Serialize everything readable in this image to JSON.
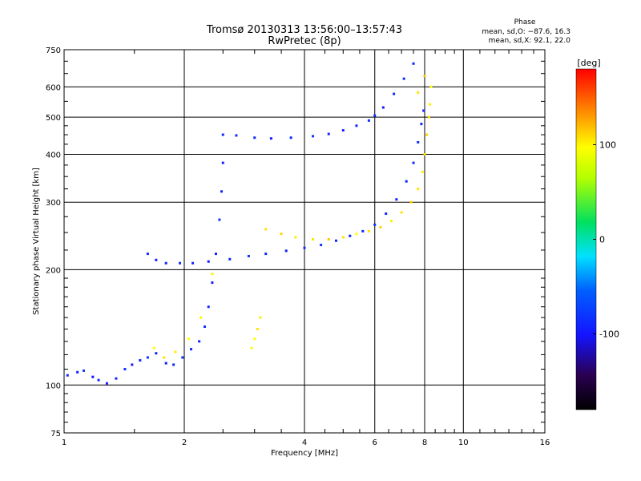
{
  "header": {
    "title": "Tromsø 20130313 13:56:00–13:57:43",
    "subtitle": "RwPretec (8p)",
    "phase_label": "Phase",
    "phase_o": "mean, sd,O: −87.6, 16.3",
    "phase_x": "mean, sd,X:  92.1, 22.0"
  },
  "chart_data": {
    "type": "scatter",
    "xlabel": "Frequency [MHz]",
    "ylabel": "Stationary phase Virtual Height [km]",
    "xscale": "log",
    "yscale": "log",
    "xlim": [
      1,
      16
    ],
    "ylim": [
      75,
      750
    ],
    "x_ticks": [
      1,
      2,
      4,
      6,
      8,
      10,
      16
    ],
    "x_tick_labels": [
      "1",
      "2",
      "4",
      "6",
      "8",
      "10",
      "16"
    ],
    "y_ticks": [
      75,
      100,
      200,
      300,
      400,
      500,
      600,
      750
    ],
    "y_tick_labels": [
      "75",
      "100",
      "200",
      "300",
      "400",
      "500",
      "600",
      "750"
    ],
    "grid": true,
    "colorbar": {
      "label": "[deg]",
      "range": [
        -180,
        180
      ],
      "ticks": [
        100,
        0,
        -100
      ],
      "tick_labels": [
        "100",
        "0",
        "-100"
      ]
    },
    "series": [
      {
        "values": [
          [
            1.02,
            106,
            -100
          ],
          [
            1.08,
            108,
            -105
          ],
          [
            1.12,
            109,
            -95
          ],
          [
            1.18,
            105,
            -110
          ],
          [
            1.22,
            103,
            -100
          ],
          [
            1.28,
            101,
            -105
          ],
          [
            1.35,
            104,
            -100
          ],
          [
            1.42,
            110,
            -95
          ],
          [
            1.48,
            113,
            -105
          ],
          [
            1.55,
            116,
            -100
          ],
          [
            1.62,
            118,
            -95
          ],
          [
            1.7,
            121,
            -100
          ],
          [
            1.8,
            114,
            -105
          ],
          [
            1.88,
            113,
            -100
          ],
          [
            1.98,
            118,
            -95
          ],
          [
            2.08,
            124,
            -100
          ],
          [
            2.18,
            130,
            -100
          ],
          [
            2.25,
            142,
            -95
          ],
          [
            2.3,
            160,
            -100
          ],
          [
            2.35,
            185,
            -105
          ],
          [
            2.4,
            220,
            -100
          ],
          [
            2.45,
            270,
            -95
          ],
          [
            2.48,
            320,
            -100
          ],
          [
            2.5,
            380,
            -105
          ],
          [
            1.62,
            220,
            -100
          ],
          [
            1.7,
            212,
            -105
          ],
          [
            1.8,
            208,
            -100
          ],
          [
            1.95,
            208,
            -95
          ],
          [
            2.1,
            208,
            -100
          ],
          [
            2.3,
            210,
            -105
          ],
          [
            2.6,
            213,
            -100
          ],
          [
            2.9,
            217,
            -95
          ],
          [
            3.2,
            220,
            -100
          ],
          [
            3.6,
            224,
            -105
          ],
          [
            4.0,
            228,
            -100
          ],
          [
            4.4,
            232,
            -95
          ],
          [
            4.8,
            238,
            -100
          ],
          [
            5.2,
            245,
            -105
          ],
          [
            5.6,
            252,
            -100
          ],
          [
            6.0,
            262,
            -95
          ],
          [
            6.4,
            280,
            -100
          ],
          [
            6.8,
            305,
            -105
          ],
          [
            7.2,
            340,
            -100
          ],
          [
            7.5,
            380,
            -100
          ],
          [
            7.7,
            430,
            -95
          ],
          [
            7.85,
            480,
            -100
          ],
          [
            7.95,
            520,
            -105
          ],
          [
            2.5,
            450,
            -100
          ],
          [
            2.7,
            448,
            -95
          ],
          [
            3.0,
            442,
            -100
          ],
          [
            3.3,
            440,
            -105
          ],
          [
            3.7,
            442,
            -100
          ],
          [
            4.2,
            446,
            -95
          ],
          [
            4.6,
            452,
            -100
          ],
          [
            5.0,
            462,
            -105
          ],
          [
            5.4,
            475,
            -100
          ],
          [
            5.8,
            490,
            -95
          ],
          [
            6.0,
            505,
            -100
          ],
          [
            6.3,
            530,
            -105
          ],
          [
            6.7,
            575,
            -100
          ],
          [
            7.1,
            630,
            -95
          ],
          [
            7.5,
            690,
            -100
          ]
        ]
      },
      {
        "values": [
          [
            3.2,
            255,
            110
          ],
          [
            3.5,
            248,
            115
          ],
          [
            3.8,
            243,
            105
          ],
          [
            4.2,
            240,
            110
          ],
          [
            4.6,
            240,
            120
          ],
          [
            5.0,
            243,
            110
          ],
          [
            5.4,
            248,
            100
          ],
          [
            5.8,
            252,
            110
          ],
          [
            6.2,
            258,
            115
          ],
          [
            6.6,
            268,
            105
          ],
          [
            7.0,
            282,
            110
          ],
          [
            7.4,
            300,
            115
          ],
          [
            7.7,
            325,
            110
          ],
          [
            7.9,
            360,
            105
          ],
          [
            8.0,
            400,
            110
          ],
          [
            8.1,
            450,
            115
          ],
          [
            8.2,
            500,
            110
          ],
          [
            8.25,
            540,
            105
          ],
          [
            8.3,
            600,
            100
          ],
          [
            2.95,
            125,
            95
          ],
          [
            3.0,
            132,
            100
          ],
          [
            3.05,
            140,
            110
          ],
          [
            3.1,
            150,
            105
          ],
          [
            1.68,
            125,
            100
          ],
          [
            1.78,
            118,
            110
          ],
          [
            1.9,
            122,
            105
          ],
          [
            2.05,
            132,
            100
          ],
          [
            2.2,
            150,
            95
          ],
          [
            2.35,
            195,
            105
          ],
          [
            7.7,
            580,
            110
          ],
          [
            8.0,
            640,
            120
          ]
        ]
      }
    ]
  }
}
